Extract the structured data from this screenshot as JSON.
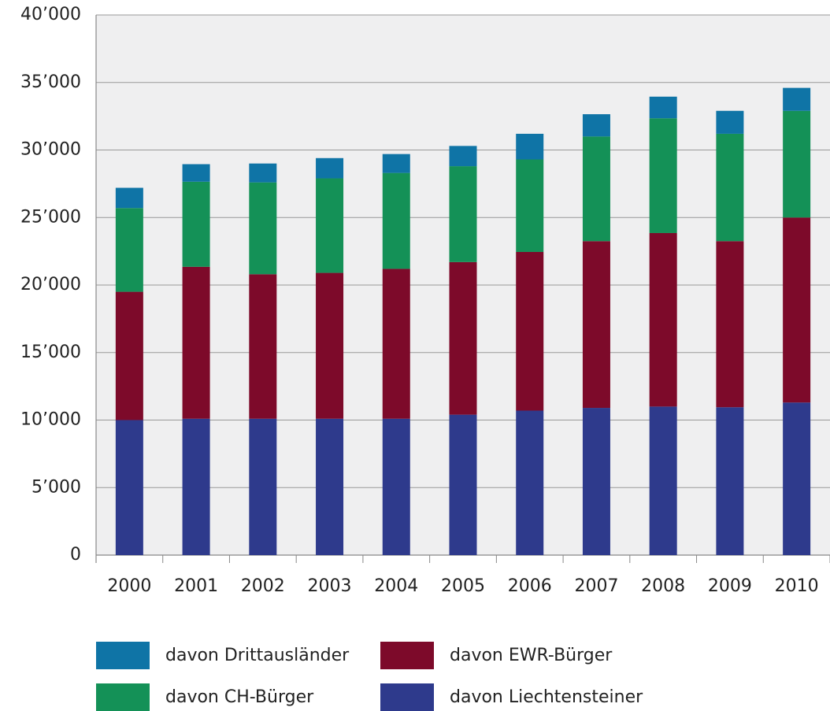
{
  "chart_data": {
    "type": "stacked_bar",
    "categories": [
      "2000",
      "2001",
      "2002",
      "2003",
      "2004",
      "2005",
      "2006",
      "2007",
      "2008",
      "2009",
      "2010"
    ],
    "series": [
      {
        "name": "davon Liechtensteiner",
        "color": "#2e3a8c",
        "values": [
          10000,
          10100,
          10100,
          10100,
          10100,
          10400,
          10700,
          10900,
          11000,
          10950,
          11300
        ]
      },
      {
        "name": "davon EWR-Bürger",
        "color": "#7d0a2a",
        "values": [
          9500,
          11250,
          10700,
          10800,
          11100,
          11300,
          11750,
          12350,
          12850,
          12300,
          13700
        ]
      },
      {
        "name": "davon CH-Bürger",
        "color": "#149157",
        "values": [
          6200,
          6300,
          6800,
          7000,
          7100,
          7100,
          6850,
          7750,
          8500,
          7950,
          7900
        ]
      },
      {
        "name": "davon Drittausländer",
        "color": "#0f74a6",
        "values": [
          1500,
          1300,
          1400,
          1500,
          1400,
          1500,
          1900,
          1650,
          1600,
          1700,
          1700
        ]
      }
    ],
    "ylim": [
      0,
      40000
    ],
    "yticks": [
      0,
      {
        "value": 5000,
        "label": "5’000"
      },
      {
        "value": 10000,
        "label": "10’000"
      },
      {
        "value": 15000,
        "label": "15’000"
      },
      {
        "value": 20000,
        "label": "20’000"
      },
      {
        "value": 25000,
        "label": "25’000"
      },
      {
        "value": 30000,
        "label": "30’000"
      },
      {
        "value": 35000,
        "label": "35’000"
      },
      {
        "value": 40000,
        "label": "40’000"
      }
    ],
    "grid": true
  }
}
